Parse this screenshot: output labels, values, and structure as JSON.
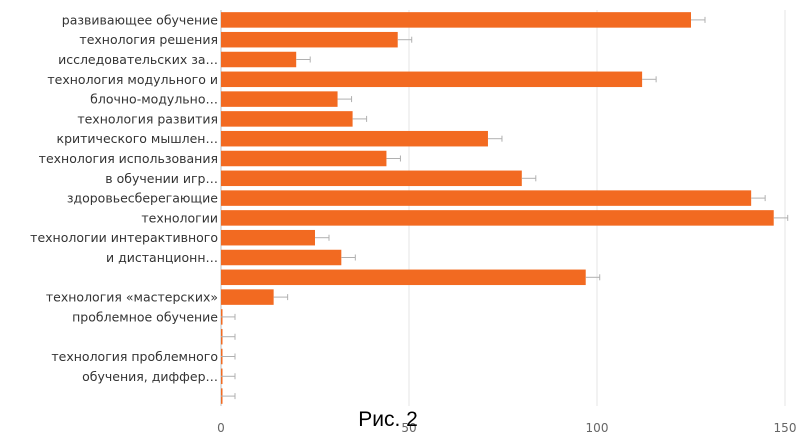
{
  "chart_data": {
    "type": "bar",
    "orientation": "horizontal",
    "categories": [
      "развивающее обучение",
      "технология решения",
      "исследовательских за…",
      "технология модульного и",
      "блочно-модульно…",
      "технология развития",
      "критического мышлен…",
      "технология использования",
      "в обучении игр…",
      "здоровьесберегающие",
      "технологии",
      "технологии интерактивного",
      "и дистанционн…",
      "",
      "технология «мастерских»",
      "проблемное обучение",
      "",
      "технология проблемного",
      "обучения, диффер…",
      ""
    ],
    "values": [
      125,
      47,
      20,
      112,
      31,
      35,
      71,
      44,
      80,
      141,
      147,
      25,
      32,
      97,
      14,
      0,
      0,
      0,
      0,
      0
    ],
    "xlim": [
      0,
      150
    ],
    "xticks": [
      0,
      50,
      100,
      150
    ],
    "grid": true,
    "colors": {
      "bar": "#f26a21",
      "grid": "#e6e6e6",
      "axis": "#bdbdbd",
      "error": "#b0b0b0"
    },
    "caption": "Рис. 2"
  }
}
